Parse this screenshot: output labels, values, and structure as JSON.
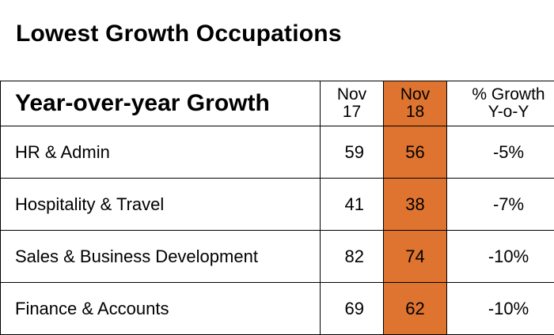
{
  "title": "Lowest Growth Occupations",
  "colors": {
    "highlight": "#de7430",
    "border": "#000000",
    "text": "#000000"
  },
  "chart_data": {
    "type": "table",
    "title": "Lowest Growth Occupations",
    "columns": [
      {
        "lines": [
          "Year-over-year Growth"
        ]
      },
      {
        "lines": [
          "Nov",
          "17"
        ]
      },
      {
        "lines": [
          "Nov",
          "18"
        ],
        "highlighted": true
      },
      {
        "lines": [
          "% Growth",
          "Y-o-Y"
        ]
      }
    ],
    "rows": [
      {
        "label": "HR & Admin",
        "nov17": "59",
        "nov18": "56",
        "growth": "-5%"
      },
      {
        "label": "Hospitality & Travel",
        "nov17": "41",
        "nov18": "38",
        "growth": "-7%"
      },
      {
        "label": "Sales & Business Development",
        "nov17": "82",
        "nov18": "74",
        "growth": "-10%"
      },
      {
        "label": "Finance & Accounts",
        "nov17": "69",
        "nov18": "62",
        "growth": "-10%"
      }
    ]
  }
}
